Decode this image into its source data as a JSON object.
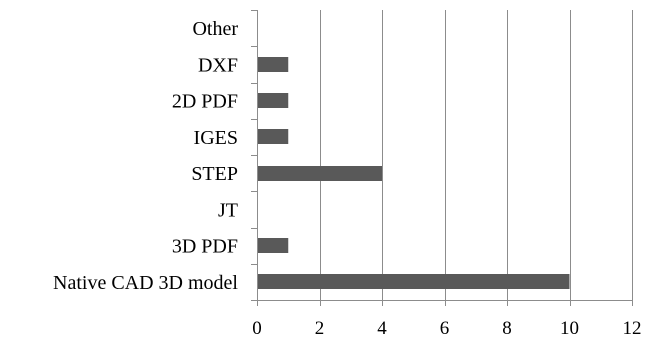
{
  "chart_data": {
    "type": "bar",
    "orientation": "horizontal",
    "categories": [
      "Native CAD 3D model",
      "3D PDF",
      "JT",
      "STEP",
      "IGES",
      "2D PDF",
      "DXF",
      "Other"
    ],
    "values": [
      10,
      1,
      0,
      4,
      1,
      1,
      1,
      0
    ],
    "xlim": [
      0,
      12
    ],
    "xticks": [
      "0",
      "2",
      "4",
      "6",
      "8",
      "10",
      "12"
    ],
    "grid": "vertical",
    "legend": "none",
    "bar_color": "#595959",
    "grid_color": "#8c8c8c",
    "axis_color": "#8c8c8c",
    "title": "",
    "xlabel": "",
    "ylabel": ""
  }
}
